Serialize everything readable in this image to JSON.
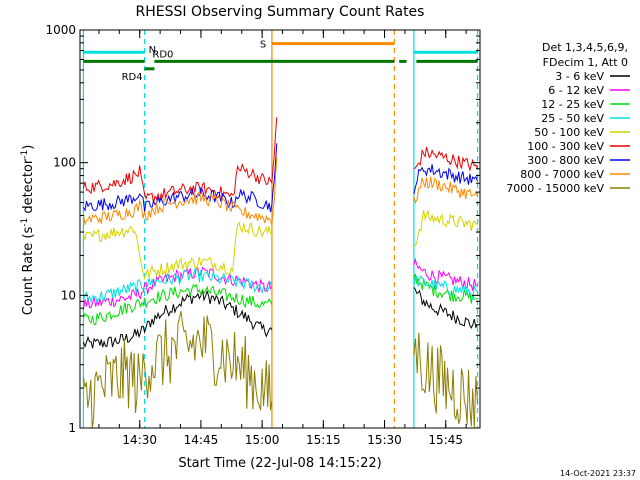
{
  "chart_data": {
    "type": "line",
    "title": "RHESSI Observing Summary Count Rates",
    "xlabel": "Start Time (22-Jul-08 14:15:22)",
    "ylabel_parts": [
      "Count Rate (s",
      "-1",
      " detector",
      "-1",
      ")"
    ],
    "y_scale": "log",
    "ylim": [
      1,
      1000
    ],
    "y_ticks": [
      {
        "value": 1,
        "label": "1"
      },
      {
        "value": 10,
        "label": "10"
      },
      {
        "value": 100,
        "label": "100"
      },
      {
        "value": 1000,
        "label": "1000"
      }
    ],
    "x_ticks": [
      {
        "value": 14.5,
        "label": "14:30"
      },
      {
        "value": 14.75,
        "label": "14:45"
      },
      {
        "value": 15.0,
        "label": "15:00"
      },
      {
        "value": 15.25,
        "label": "15:15"
      },
      {
        "value": 15.5,
        "label": "15:30"
      },
      {
        "value": 15.75,
        "label": "15:45"
      }
    ],
    "xlim": [
      14.256,
      15.89
    ],
    "legend": {
      "position": "right",
      "header": [
        "Det 1,3,4,5,6,9,",
        "FDecim 1, Att 0"
      ],
      "entries": [
        {
          "label": "3 - 6 keV",
          "color": "#000000"
        },
        {
          "label": "6 - 12 keV",
          "color": "#ff00ff"
        },
        {
          "label": "12 - 25 keV",
          "color": "#00dd00"
        },
        {
          "label": "25 - 50 keV",
          "color": "#00e0e0"
        },
        {
          "label": "50 - 100 keV",
          "color": "#d4d400"
        },
        {
          "label": "100 - 300 keV",
          "color": "#ee0000"
        },
        {
          "label": "300 - 800 keV",
          "color": "#0000ee"
        },
        {
          "label": "800 - 7000 keV",
          "color": "#ff8800"
        },
        {
          "label": "7000 - 15000 keV",
          "color": "#8b7d00"
        }
      ]
    },
    "series": [
      {
        "name": "3 - 6 keV",
        "color": "#000000",
        "segments": [
          {
            "x": [
              14.27,
              14.32,
              14.36,
              14.4,
              14.44,
              14.48,
              14.52,
              14.55,
              14.6,
              14.65,
              14.7,
              14.75,
              14.8,
              14.85,
              14.9,
              14.95,
              15.0,
              15.04
            ],
            "y": [
              4.3,
              4.3,
              4.4,
              4.5,
              4.7,
              5.0,
              5.5,
              6.5,
              7.5,
              8.5,
              9.5,
              10.0,
              9.5,
              8.5,
              7.5,
              6.5,
              5.5,
              5.5
            ]
          },
          {
            "x": [
              15.62,
              15.66,
              15.7,
              15.74,
              15.78,
              15.82,
              15.86,
              15.88
            ],
            "y": [
              11.0,
              9.0,
              8.0,
              7.5,
              7.0,
              6.5,
              6.0,
              6.0
            ]
          }
        ]
      },
      {
        "name": "6 - 12 keV",
        "color": "#ff00ff",
        "segments": [
          {
            "x": [
              14.27,
              14.32,
              14.36,
              14.4,
              14.44,
              14.48,
              14.52,
              14.55,
              14.6,
              14.65,
              14.7,
              14.75,
              14.8,
              14.85,
              14.9,
              14.95,
              15.0,
              15.04
            ],
            "y": [
              8.5,
              8.7,
              9.0,
              9.2,
              9.5,
              10.0,
              11.0,
              12.0,
              13.0,
              14.0,
              14.5,
              15.0,
              14.5,
              13.5,
              13.0,
              12.5,
              11.5,
              11.5
            ]
          },
          {
            "x": [
              15.62,
              15.66,
              15.7,
              15.74,
              15.78,
              15.82,
              15.86,
              15.88
            ],
            "y": [
              17.0,
              15.0,
              14.0,
              13.5,
              13.0,
              12.5,
              12.0,
              12.0
            ]
          }
        ]
      },
      {
        "name": "12 - 25 keV",
        "color": "#00dd00",
        "segments": [
          {
            "x": [
              14.27,
              14.32,
              14.36,
              14.4,
              14.44,
              14.48,
              14.52,
              14.55,
              14.6,
              14.65,
              14.7,
              14.75,
              14.8,
              14.85,
              14.9,
              14.95,
              15.0,
              15.04
            ],
            "y": [
              6.5,
              6.7,
              7.0,
              7.5,
              8.0,
              8.5,
              9.0,
              9.5,
              10.0,
              10.5,
              11.0,
              11.0,
              10.5,
              10.0,
              9.5,
              9.0,
              8.5,
              8.5
            ]
          },
          {
            "x": [
              15.62,
              15.66,
              15.7,
              15.74,
              15.78,
              15.82,
              15.86,
              15.88
            ],
            "y": [
              14.0,
              12.0,
              11.0,
              10.5,
              10.0,
              10.0,
              9.5,
              9.5
            ]
          }
        ]
      },
      {
        "name": "25 - 50 keV",
        "color": "#00e0e0",
        "segments": [
          {
            "x": [
              14.27,
              14.32,
              14.36,
              14.4,
              14.44,
              14.48,
              14.52,
              14.55,
              14.6,
              14.65,
              14.7,
              14.75,
              14.8,
              14.85,
              14.9,
              14.95,
              15.0,
              15.04
            ],
            "y": [
              9.5,
              9.7,
              10.0,
              10.5,
              11.0,
              11.5,
              12.0,
              12.5,
              13.0,
              13.5,
              14.0,
              14.0,
              13.5,
              13.0,
              12.5,
              12.0,
              11.5,
              11.5
            ]
          },
          {
            "x": [
              15.62,
              15.66,
              15.7,
              15.74,
              15.78,
              15.82,
              15.86,
              15.88
            ],
            "y": [
              13.0,
              12.5,
              12.0,
              11.5,
              11.0,
              11.0,
              10.5,
              10.5
            ]
          }
        ]
      },
      {
        "name": "50 - 100 keV",
        "color": "#d4d400",
        "segments": [
          {
            "x": [
              14.27,
              14.32,
              14.36,
              14.4,
              14.44,
              14.48,
              14.5,
              14.52,
              14.55,
              14.6,
              14.65,
              14.7,
              14.75,
              14.8,
              14.85,
              14.88,
              14.9,
              14.95,
              15.0,
              15.04
            ],
            "y": [
              27,
              28,
              29,
              30,
              31,
              32,
              20,
              14,
              15,
              16,
              17,
              17.5,
              18,
              17.5,
              16.5,
              15.5,
              34,
              32,
              30,
              30
            ]
          },
          {
            "x": [
              15.62,
              15.66,
              15.7,
              15.74,
              15.78,
              15.82,
              15.86,
              15.88
            ],
            "y": [
              23,
              40,
              38,
              37,
              36,
              35,
              34,
              34
            ]
          }
        ]
      },
      {
        "name": "100 - 300 keV",
        "color": "#ee0000",
        "segments": [
          {
            "x": [
              14.27,
              14.32,
              14.36,
              14.4,
              14.44,
              14.48,
              14.5,
              14.52,
              14.55,
              14.6,
              14.65,
              14.7,
              14.75,
              14.8,
              14.85,
              14.88,
              14.9,
              14.95,
              15.0,
              15.04,
              15.05,
              15.06
            ],
            "y": [
              65,
              66,
              68,
              70,
              75,
              80,
              85,
              52,
              55,
              58,
              61,
              63,
              64,
              62,
              58,
              55,
              90,
              85,
              75,
              70,
              120,
              220
            ]
          },
          {
            "x": [
              15.62,
              15.64,
              15.66,
              15.7,
              15.74,
              15.78,
              15.82,
              15.86,
              15.88
            ],
            "y": [
              85,
              100,
              120,
              115,
              110,
              105,
              100,
              95,
              90
            ]
          }
        ]
      },
      {
        "name": "300 - 800 keV",
        "color": "#0000ee",
        "segments": [
          {
            "x": [
              14.27,
              14.32,
              14.36,
              14.4,
              14.44,
              14.48,
              14.5,
              14.52,
              14.55,
              14.6,
              14.65,
              14.7,
              14.75,
              14.8,
              14.85,
              14.88,
              14.9,
              14.95,
              15.0,
              15.04,
              15.05,
              15.06
            ],
            "y": [
              47,
              48,
              49,
              50,
              52,
              55,
              60,
              45,
              48,
              52,
              55,
              57,
              58,
              56,
              52,
              49,
              58,
              55,
              50,
              47,
              70,
              140
            ]
          },
          {
            "x": [
              15.62,
              15.64,
              15.66,
              15.7,
              15.74,
              15.78,
              15.82,
              15.86,
              15.88
            ],
            "y": [
              65,
              80,
              90,
              88,
              84,
              80,
              77,
              74,
              72
            ]
          }
        ]
      },
      {
        "name": "800 - 7000 keV",
        "color": "#ff8800",
        "segments": [
          {
            "x": [
              14.27,
              14.32,
              14.36,
              14.4,
              14.44,
              14.48,
              14.5,
              14.52,
              14.55,
              14.6,
              14.65,
              14.7,
              14.75,
              14.8,
              14.85,
              14.88,
              14.9,
              14.95,
              15.0,
              15.04,
              15.05,
              15.06
            ],
            "y": [
              37,
              38,
              39,
              40,
              42,
              44,
              47,
              40,
              44,
              48,
              51,
              53,
              54,
              52,
              48,
              45,
              43,
              41,
              39,
              37,
              55,
              110
            ]
          },
          {
            "x": [
              15.62,
              15.64,
              15.66,
              15.7,
              15.74,
              15.78,
              15.82,
              15.86,
              15.88
            ],
            "y": [
              50,
              62,
              72,
              70,
              67,
              63,
              60,
              57,
              55
            ]
          }
        ]
      },
      {
        "name": "7000 - 15000 keV",
        "color": "#8b7d00",
        "segments": [
          {
            "x": [
              14.27,
              14.3,
              14.34,
              14.38,
              14.42,
              14.46,
              14.5,
              14.52,
              14.55,
              14.6,
              14.65,
              14.7,
              14.75,
              14.8,
              14.85,
              14.9,
              14.95,
              15.0,
              15.04
            ],
            "y": [
              1.5,
              1.8,
              2.0,
              2.2,
              2.4,
              2.6,
              2.0,
              3.0,
              3.2,
              3.5,
              4.0,
              4.2,
              4.5,
              4.0,
              3.5,
              3.0,
              2.5,
              2.0,
              1.6
            ]
          },
          {
            "x": [
              15.62,
              15.64,
              15.66,
              15.7,
              15.74,
              15.78,
              15.82,
              15.86,
              15.88
            ],
            "y": [
              4.0,
              3.5,
              3.0,
              2.5,
              2.2,
              2.0,
              1.8,
              1.6,
              1.5
            ]
          }
        ]
      }
    ],
    "annotations": {
      "bars": [
        {
          "label": "N",
          "color": "#00e0e0",
          "y": 680,
          "segments": [
            [
              14.27,
              14.52
            ],
            [
              15.62,
              15.88
            ]
          ]
        },
        {
          "label": "RD0",
          "color": "#007700",
          "y": 580,
          "segments": [
            [
              14.27,
              14.52
            ],
            [
              14.56,
              15.02
            ],
            [
              15.02,
              15.54
            ],
            [
              15.56,
              15.59
            ],
            [
              15.63,
              15.88
            ]
          ]
        },
        {
          "label": "RD4",
          "color": "#007700",
          "y": 510,
          "segments": [
            [
              14.52,
              14.56
            ]
          ]
        },
        {
          "label": "S",
          "color": "#ff8800",
          "y": 790,
          "segments": [
            [
              15.04,
              15.54
            ]
          ]
        }
      ],
      "vlines": [
        {
          "x": 14.27,
          "color": "#00e0e0",
          "dash": false
        },
        {
          "x": 14.52,
          "color": "#00e0e0",
          "dash": true
        },
        {
          "x": 15.04,
          "color": "#ff8800",
          "dash": false
        },
        {
          "x": 15.54,
          "color": "#ff8800",
          "dash": true
        },
        {
          "x": 15.62,
          "color": "#00e0e0",
          "dash": false
        },
        {
          "x": 15.88,
          "color": "#00e0e0",
          "dash": true
        }
      ]
    }
  },
  "footer_timestamp": "14-Oct-2021 23:37"
}
